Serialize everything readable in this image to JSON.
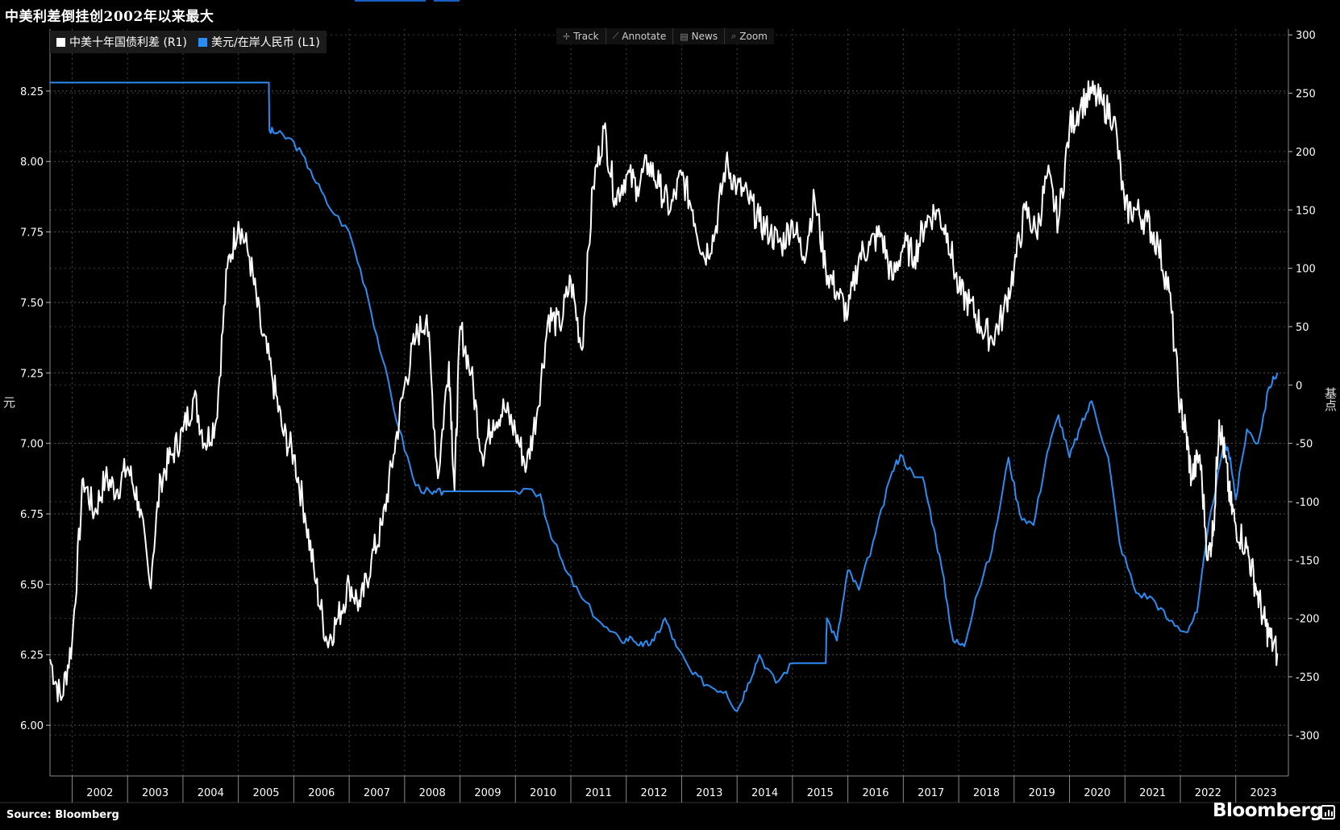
{
  "title": "中美利差倒挂创2002年以来最大",
  "legend": [
    {
      "label": "中美十年国债利差 (R1)",
      "color": "#ffffff"
    },
    {
      "label": "美元/在岸人民币 (L1)",
      "color": "#2d8cf0"
    }
  ],
  "toolbar": [
    {
      "label": "Track",
      "icon": "crosshair-icon"
    },
    {
      "label": "Annotate",
      "icon": "pencil-icon"
    },
    {
      "label": "News",
      "icon": "news-icon"
    },
    {
      "label": "Zoom",
      "icon": "magnifier-icon"
    }
  ],
  "left_axis_title": "元",
  "right_axis_title": "基点",
  "source": "Source: Bloomberg",
  "brand": "Bloomberg",
  "chart_data": {
    "type": "line",
    "title": "中美利差倒挂创2002年以来最大",
    "x_tick_labels": [
      "2002",
      "2003",
      "2004",
      "2005",
      "2006",
      "2007",
      "2008",
      "2009",
      "2010",
      "2011",
      "2012",
      "2013",
      "2014",
      "2015",
      "2016",
      "2017",
      "2018",
      "2019",
      "2020",
      "2021",
      "2022",
      "2023"
    ],
    "x_range": [
      2001.6,
      2023.95
    ],
    "left_axis": {
      "label": "元",
      "ylim": [
        5.82,
        8.47
      ],
      "ticks": [
        "6.00",
        "6.25",
        "6.50",
        "6.75",
        "7.00",
        "7.25",
        "7.50",
        "7.75",
        "8.00",
        "8.25"
      ]
    },
    "right_axis": {
      "label": "基点",
      "ylim": [
        -335,
        305
      ],
      "ticks": [
        "-300",
        "-250",
        "-200",
        "-150",
        "-100",
        "-50",
        "0",
        "50",
        "100",
        "150",
        "200",
        "250",
        "300"
      ]
    },
    "grid": true,
    "legend_position": "top-left",
    "series": [
      {
        "name": "美元/在岸人民币 (L1)",
        "axis": "left",
        "color": "#2d8cf0",
        "x": [
          2001.6,
          2005.55,
          2005.56,
          2005.7,
          2006.0,
          2006.3,
          2006.6,
          2007.0,
          2007.3,
          2007.6,
          2007.9,
          2008.2,
          2008.5,
          2008.7,
          2009.0,
          2009.5,
          2010.0,
          2010.45,
          2010.6,
          2010.9,
          2011.2,
          2011.6,
          2011.9,
          2012.1,
          2012.3,
          2012.5,
          2012.7,
          2012.9,
          2013.2,
          2013.5,
          2013.8,
          2014.0,
          2014.2,
          2014.4,
          2014.7,
          2015.0,
          2015.3,
          2015.6,
          2015.62,
          2015.8,
          2016.0,
          2016.2,
          2016.5,
          2016.8,
          2016.95,
          2017.2,
          2017.35,
          2017.55,
          2017.7,
          2017.9,
          2018.1,
          2018.3,
          2018.6,
          2018.9,
          2019.1,
          2019.35,
          2019.6,
          2019.8,
          2020.0,
          2020.2,
          2020.4,
          2020.7,
          2020.9,
          2021.2,
          2021.5,
          2021.8,
          2022.1,
          2022.3,
          2022.55,
          2022.8,
          2022.9,
          2023.0,
          2023.2,
          2023.4,
          2023.6,
          2023.75
        ],
        "values": [
          8.28,
          8.28,
          8.11,
          8.1,
          8.07,
          7.97,
          7.85,
          7.75,
          7.55,
          7.3,
          7.05,
          6.85,
          6.82,
          6.83,
          6.83,
          6.83,
          6.83,
          6.82,
          6.7,
          6.55,
          6.45,
          6.35,
          6.3,
          6.31,
          6.28,
          6.3,
          6.38,
          6.28,
          6.18,
          6.14,
          6.12,
          6.05,
          6.15,
          6.25,
          6.15,
          6.22,
          6.22,
          6.22,
          6.38,
          6.3,
          6.55,
          6.48,
          6.68,
          6.9,
          6.96,
          6.88,
          6.88,
          6.7,
          6.55,
          6.3,
          6.28,
          6.45,
          6.62,
          6.95,
          6.75,
          6.71,
          6.97,
          7.1,
          6.95,
          7.06,
          7.15,
          6.95,
          6.65,
          6.47,
          6.45,
          6.37,
          6.33,
          6.4,
          6.76,
          7.0,
          6.95,
          6.8,
          7.05,
          7.0,
          7.2,
          7.25
        ]
      },
      {
        "name": "中美十年国债利差 (R1)",
        "axis": "right",
        "color": "#ffffff",
        "x": [
          2001.6,
          2001.8,
          2002.0,
          2002.2,
          2002.4,
          2002.6,
          2002.8,
          2003.0,
          2003.2,
          2003.4,
          2003.6,
          2003.8,
          2004.0,
          2004.2,
          2004.4,
          2004.6,
          2004.8,
          2005.0,
          2005.2,
          2005.4,
          2005.6,
          2005.8,
          2006.0,
          2006.2,
          2006.4,
          2006.6,
          2006.8,
          2007.0,
          2007.2,
          2007.4,
          2007.6,
          2007.8,
          2008.0,
          2008.2,
          2008.4,
          2008.6,
          2008.8,
          2008.9,
          2009.0,
          2009.2,
          2009.4,
          2009.6,
          2009.8,
          2010.0,
          2010.2,
          2010.4,
          2010.6,
          2010.8,
          2011.0,
          2011.2,
          2011.4,
          2011.6,
          2011.8,
          2012.0,
          2012.2,
          2012.4,
          2012.6,
          2012.8,
          2013.0,
          2013.2,
          2013.4,
          2013.6,
          2013.8,
          2014.0,
          2014.2,
          2014.4,
          2014.6,
          2014.8,
          2015.0,
          2015.2,
          2015.4,
          2015.6,
          2015.8,
          2016.0,
          2016.2,
          2016.4,
          2016.6,
          2016.8,
          2017.0,
          2017.2,
          2017.4,
          2017.6,
          2017.8,
          2018.0,
          2018.2,
          2018.4,
          2018.6,
          2018.8,
          2019.0,
          2019.2,
          2019.4,
          2019.6,
          2019.8,
          2020.0,
          2020.2,
          2020.4,
          2020.6,
          2020.8,
          2021.0,
          2021.2,
          2021.4,
          2021.6,
          2021.8,
          2022.0,
          2022.1,
          2022.2,
          2022.35,
          2022.5,
          2022.6,
          2022.7,
          2022.8,
          2022.9,
          2023.0,
          2023.2,
          2023.35,
          2023.5,
          2023.6,
          2023.75
        ],
        "values": [
          -235,
          -270,
          -220,
          -80,
          -110,
          -80,
          -90,
          -70,
          -100,
          -170,
          -80,
          -60,
          -40,
          -10,
          -50,
          -30,
          100,
          140,
          110,
          50,
          10,
          -40,
          -60,
          -110,
          -170,
          -220,
          -200,
          -170,
          -190,
          -150,
          -120,
          -60,
          0,
          40,
          60,
          -80,
          20,
          -90,
          50,
          10,
          -60,
          -30,
          -20,
          -40,
          -70,
          -20,
          60,
          50,
          90,
          30,
          170,
          220,
          160,
          180,
          170,
          190,
          170,
          150,
          180,
          150,
          110,
          130,
          190,
          170,
          160,
          140,
          130,
          120,
          140,
          110,
          160,
          100,
          80,
          60,
          110,
          120,
          130,
          90,
          120,
          110,
          140,
          150,
          130,
          80,
          70,
          50,
          40,
          60,
          100,
          150,
          130,
          180,
          140,
          220,
          240,
          250,
          240,
          230,
          150,
          150,
          140,
          120,
          80,
          -20,
          -40,
          -80,
          -60,
          -150,
          -120,
          -30,
          -60,
          -100,
          -120,
          -140,
          -170,
          -200,
          -215,
          -230
        ]
      }
    ]
  }
}
